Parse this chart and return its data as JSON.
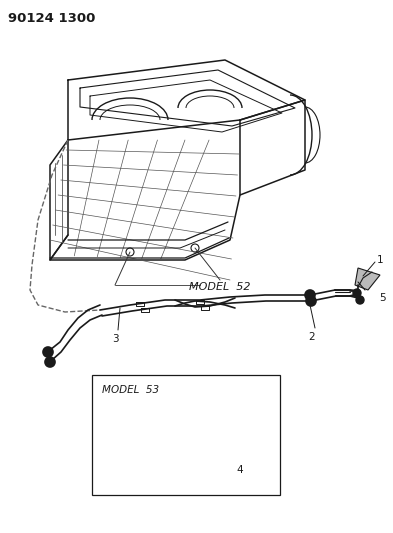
{
  "title": "90124 1300",
  "background_color": "#ffffff",
  "line_color": "#1a1a1a",
  "model52_label": "MODEL  52",
  "model53_label": "MODEL  53",
  "figsize": [
    3.93,
    5.33
  ],
  "dpi": 100,
  "title_fontsize": 9.5,
  "label_fontsize": 7.5,
  "model_fontsize": 8
}
